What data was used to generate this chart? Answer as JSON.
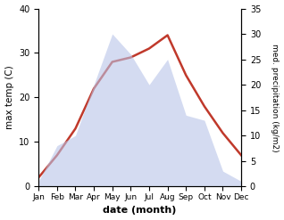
{
  "months": [
    "Jan",
    "Feb",
    "Mar",
    "Apr",
    "May",
    "Jun",
    "Jul",
    "Aug",
    "Sep",
    "Oct",
    "Nov",
    "Dec"
  ],
  "month_positions": [
    1,
    2,
    3,
    4,
    5,
    6,
    7,
    8,
    9,
    10,
    11,
    12
  ],
  "temperature": [
    2,
    7,
    13,
    22,
    28,
    29,
    31,
    34,
    25,
    18,
    12,
    7
  ],
  "precipitation": [
    1,
    8,
    10,
    20,
    30,
    26,
    20,
    25,
    14,
    13,
    3,
    1
  ],
  "temp_color": "#c0392b",
  "precip_fill_color": "#b8c4e8",
  "xlabel": "date (month)",
  "ylabel_left": "max temp (C)",
  "ylabel_right": "med. precipitation (kg/m2)",
  "ylim_left": [
    0,
    40
  ],
  "ylim_right": [
    0,
    35
  ],
  "yticks_left": [
    0,
    10,
    20,
    30,
    40
  ],
  "yticks_right": [
    0,
    5,
    10,
    15,
    20,
    25,
    30,
    35
  ],
  "background_color": "#ffffff",
  "temp_linewidth": 1.8,
  "precip_alpha": 0.6
}
